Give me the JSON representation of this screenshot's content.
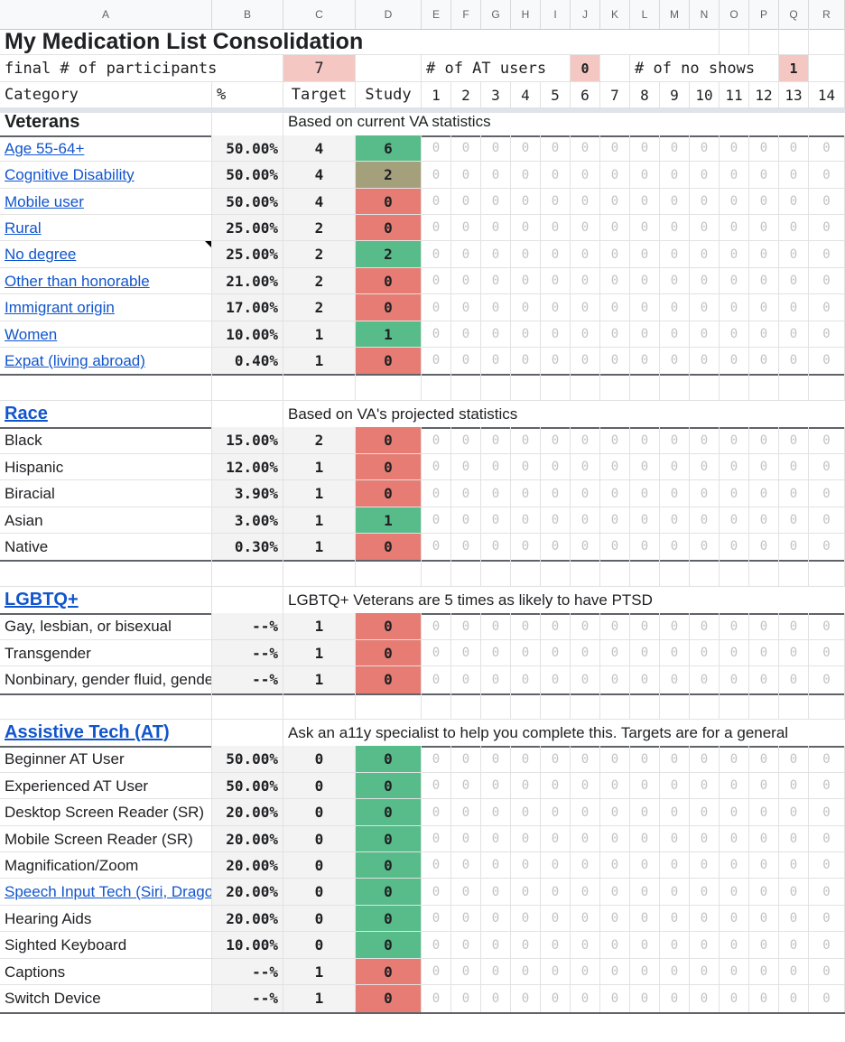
{
  "columns": [
    "A",
    "B",
    "C",
    "D",
    "E",
    "F",
    "G",
    "H",
    "I",
    "J",
    "K",
    "L",
    "M",
    "N",
    "O",
    "P",
    "Q",
    "R"
  ],
  "colors": {
    "green": "#57bb8a",
    "red": "#e67c73",
    "olive": "#a4a07c",
    "pink": "#f4c7c3",
    "pink_dark": "#f4b6b2",
    "link": "#1155cc",
    "label_bg": "#f3f3f3"
  },
  "title": "My Medication List Consolidation",
  "summary": {
    "participants_label": "final # of participants",
    "participants_value": "7",
    "at_users_label": "# of AT users",
    "at_users_value": "0",
    "no_shows_label": "# of no shows",
    "no_shows_value": "1"
  },
  "header": {
    "category": "Category",
    "percent": "%",
    "target": "Target",
    "study": "Study",
    "participants": [
      "1",
      "2",
      "3",
      "4",
      "5",
      "6",
      "7",
      "8",
      "9",
      "10",
      "11",
      "12",
      "13",
      "14"
    ]
  },
  "sections": [
    {
      "title": "Veterans",
      "title_link": false,
      "note": "Based on current VA statistics",
      "rows": [
        {
          "label": "Age 55-64+",
          "link": true,
          "pct": "50.00%",
          "target": "4",
          "study": "6",
          "status": "green"
        },
        {
          "label": "Cognitive Disability",
          "link": true,
          "pct": "50.00%",
          "target": "4",
          "study": "2",
          "status": "olive"
        },
        {
          "label": "Mobile user",
          "link": true,
          "pct": "50.00%",
          "target": "4",
          "study": "0",
          "status": "red"
        },
        {
          "label": "Rural",
          "link": true,
          "pct": "25.00%",
          "target": "2",
          "study": "0",
          "status": "red"
        },
        {
          "label": "No degree",
          "link": true,
          "pct": "25.00%",
          "target": "2",
          "study": "2",
          "status": "green",
          "comment": true
        },
        {
          "label": "Other than honorable",
          "link": true,
          "pct": "21.00%",
          "target": "2",
          "study": "0",
          "status": "red"
        },
        {
          "label": "Immigrant origin",
          "link": true,
          "pct": "17.00%",
          "target": "2",
          "study": "0",
          "status": "red"
        },
        {
          "label": "Women",
          "link": true,
          "pct": "10.00%",
          "target": "1",
          "study": "1",
          "status": "green"
        },
        {
          "label": "Expat (living abroad)",
          "link": true,
          "pct": "0.40%",
          "target": "1",
          "study": "0",
          "status": "red"
        }
      ]
    },
    {
      "title": "Race",
      "title_link": true,
      "note": "Based on VA's projected statistics",
      "rows": [
        {
          "label": "Black",
          "link": false,
          "pct": "15.00%",
          "target": "2",
          "study": "0",
          "status": "red"
        },
        {
          "label": "Hispanic",
          "link": false,
          "pct": "12.00%",
          "target": "1",
          "study": "0",
          "status": "red"
        },
        {
          "label": "Biracial",
          "link": false,
          "pct": "3.90%",
          "target": "1",
          "study": "0",
          "status": "red"
        },
        {
          "label": "Asian",
          "link": false,
          "pct": "3.00%",
          "target": "1",
          "study": "1",
          "status": "green"
        },
        {
          "label": "Native",
          "link": false,
          "pct": "0.30%",
          "target": "1",
          "study": "0",
          "status": "red"
        }
      ]
    },
    {
      "title": "LGBTQ+",
      "title_link": true,
      "note": "LGBTQ+ Veterans are 5 times as likely to have PTSD",
      "rows": [
        {
          "label": "Gay, lesbian, or bisexual",
          "link": false,
          "pct": "--%",
          "target": "1",
          "study": "0",
          "status": "red"
        },
        {
          "label": "Transgender",
          "link": false,
          "pct": "--%",
          "target": "1",
          "study": "0",
          "status": "red"
        },
        {
          "label": "Nonbinary, gender fluid, gender non-conforming",
          "link": false,
          "pct": "--%",
          "target": "1",
          "study": "0",
          "status": "red"
        }
      ]
    },
    {
      "title": "Assistive Tech (AT)",
      "title_link": true,
      "note": "Ask an a11y specialist to help you complete this. Targets are for a general",
      "rows": [
        {
          "label": "Beginner AT User",
          "link": false,
          "pct": "50.00%",
          "target": "0",
          "study": "0",
          "status": "green"
        },
        {
          "label": "Experienced AT User",
          "link": false,
          "pct": "50.00%",
          "target": "0",
          "study": "0",
          "status": "green"
        },
        {
          "label": "Desktop Screen Reader (SR)",
          "link": false,
          "pct": "20.00%",
          "target": "0",
          "study": "0",
          "status": "green"
        },
        {
          "label": "Mobile Screen Reader (SR)",
          "link": false,
          "pct": "20.00%",
          "target": "0",
          "study": "0",
          "status": "green"
        },
        {
          "label": "Magnification/Zoom",
          "link": false,
          "pct": "20.00%",
          "target": "0",
          "study": "0",
          "status": "green"
        },
        {
          "label": "Speech Input Tech (Siri, Dragon)",
          "link": true,
          "pct": "20.00%",
          "target": "0",
          "study": "0",
          "status": "green"
        },
        {
          "label": "Hearing Aids",
          "link": false,
          "pct": "20.00%",
          "target": "0",
          "study": "0",
          "status": "green"
        },
        {
          "label": "Sighted Keyboard",
          "link": false,
          "pct": "10.00%",
          "target": "0",
          "study": "0",
          "status": "green"
        },
        {
          "label": "Captions",
          "link": false,
          "pct": "--%",
          "target": "1",
          "study": "0",
          "status": "red"
        },
        {
          "label": "Switch Device",
          "link": false,
          "pct": "--%",
          "target": "1",
          "study": "0",
          "status": "red"
        }
      ]
    }
  ],
  "participant_default": "0"
}
